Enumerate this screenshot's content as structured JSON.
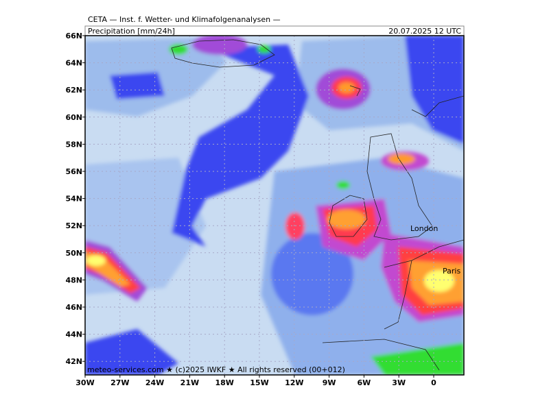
{
  "header": {
    "title": "CETA — Inst. f. Wetter- und Klimafolgenanalysen —",
    "field": "Precipitation [mm/24h]",
    "datetime": "20.07.2025 12 UTC"
  },
  "map": {
    "lat_labels": [
      "66N",
      "64N",
      "62N",
      "60N",
      "58N",
      "56N",
      "54N",
      "52N",
      "50N",
      "48N",
      "46N",
      "44N",
      "42N"
    ],
    "lon_labels": [
      "30W",
      "27W",
      "24W",
      "21W",
      "18W",
      "15W",
      "12W",
      "9W",
      "6W",
      "3W",
      "0"
    ],
    "places": [
      "London",
      "Paris"
    ],
    "footer": "meteo-services.com ★ (c)2025 IWKF ★ All rights reserved (00+012)"
  }
}
